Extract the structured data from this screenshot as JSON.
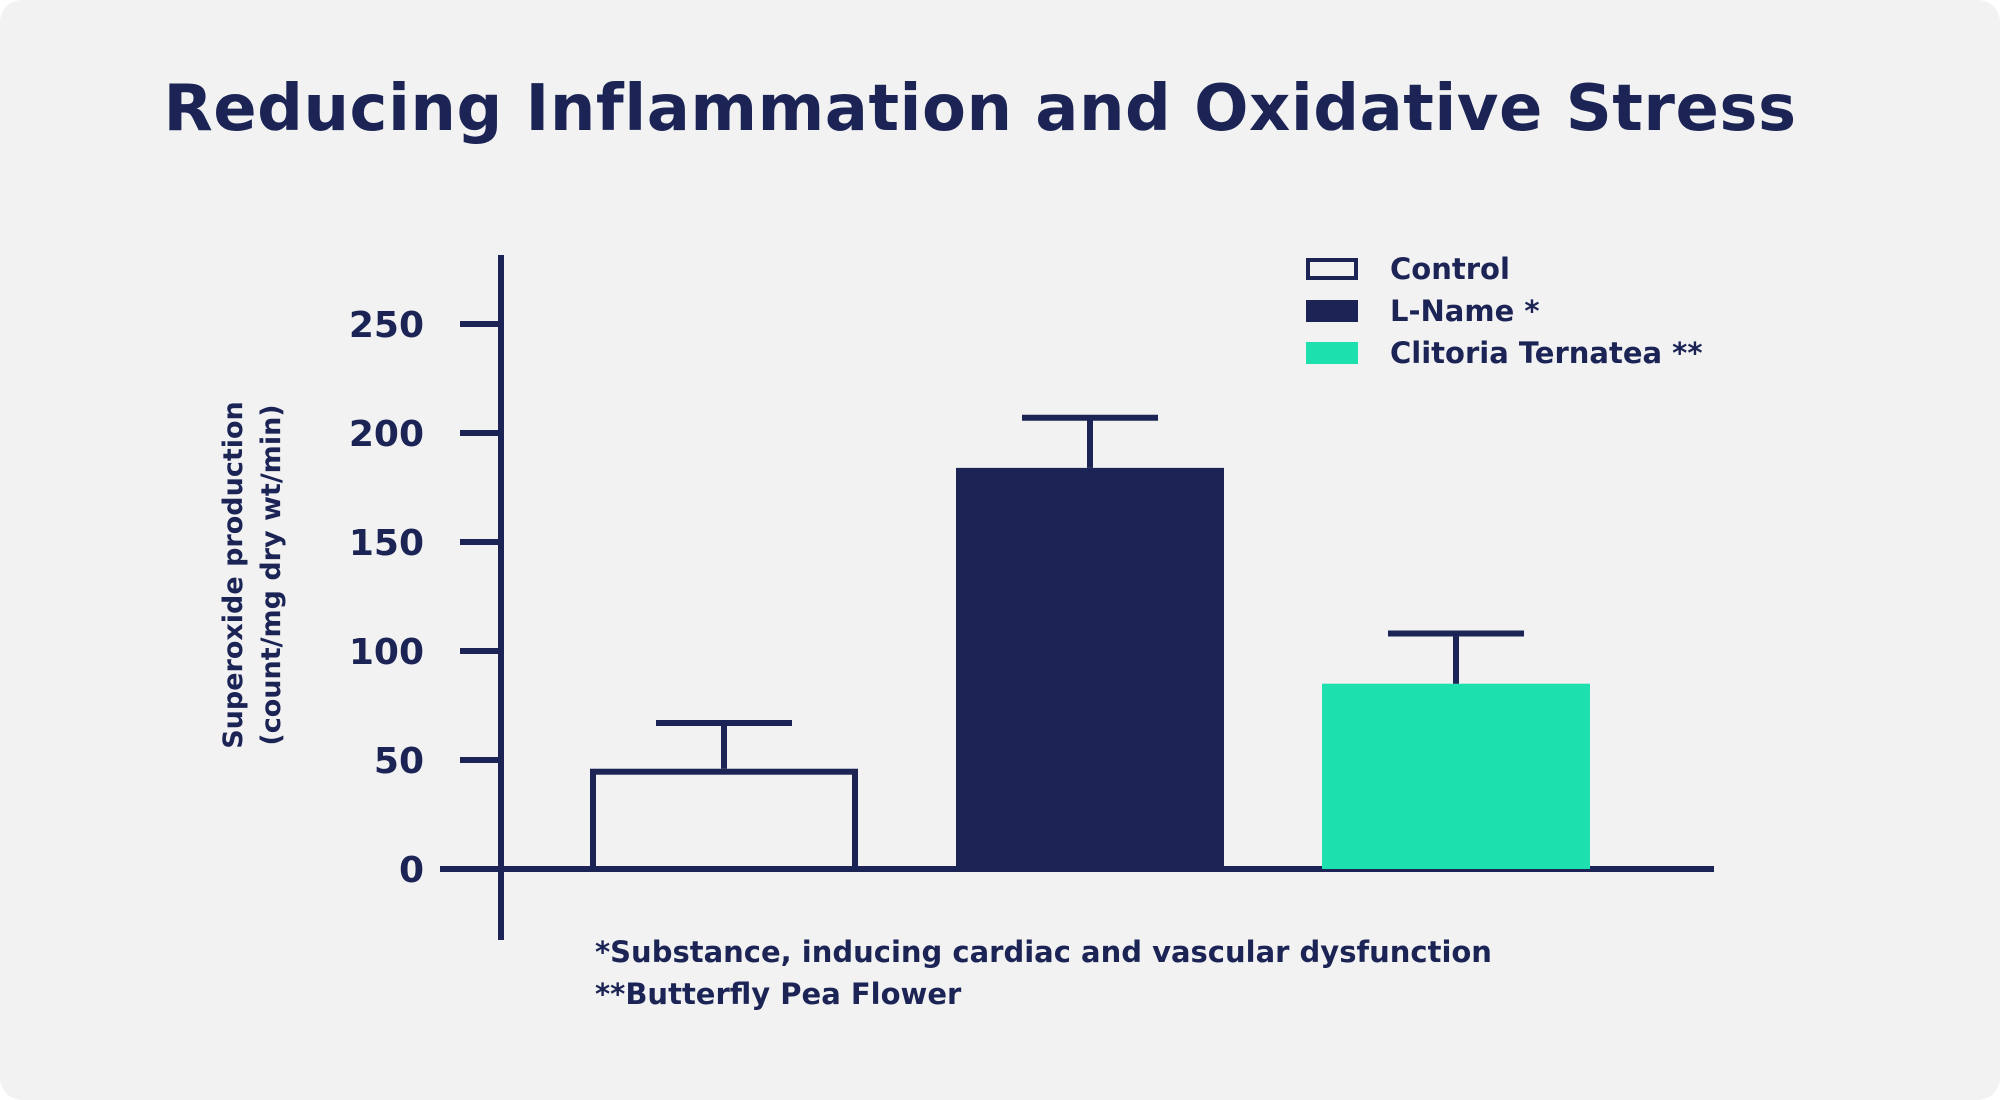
{
  "chart_data": {
    "type": "bar",
    "title": "Reducing Inflammation and Oxidative Stress",
    "ylabel_lines": [
      "Superoxide production",
      "(count/mg dry wt/min)"
    ],
    "xlabel": "",
    "ylim": [
      0,
      280
    ],
    "yticks": [
      "0",
      "50",
      "100",
      "150",
      "200",
      "250"
    ],
    "categories": [
      "Control",
      "L-Name *",
      "Clitoria Ternatea **"
    ],
    "series": [
      {
        "name": "Superoxide production",
        "values": [
          46,
          184,
          85
        ],
        "error_upper": [
          67,
          207,
          108
        ]
      }
    ],
    "colors": {
      "Control": "#f2f2f2",
      "L-Name *": "#1b2455",
      "Clitoria Ternatea **": "#1ce0ad",
      "axis": "#1b2455",
      "text": "#1b2455"
    },
    "legend": {
      "position": "top-right",
      "entries": [
        "Control",
        "L-Name *",
        "Clitoria Ternatea **"
      ]
    },
    "grid": false
  },
  "footnotes": [
    "*Substance, inducing cardiac and vascular dysfunction",
    "**Butterfly Pea Flower"
  ]
}
